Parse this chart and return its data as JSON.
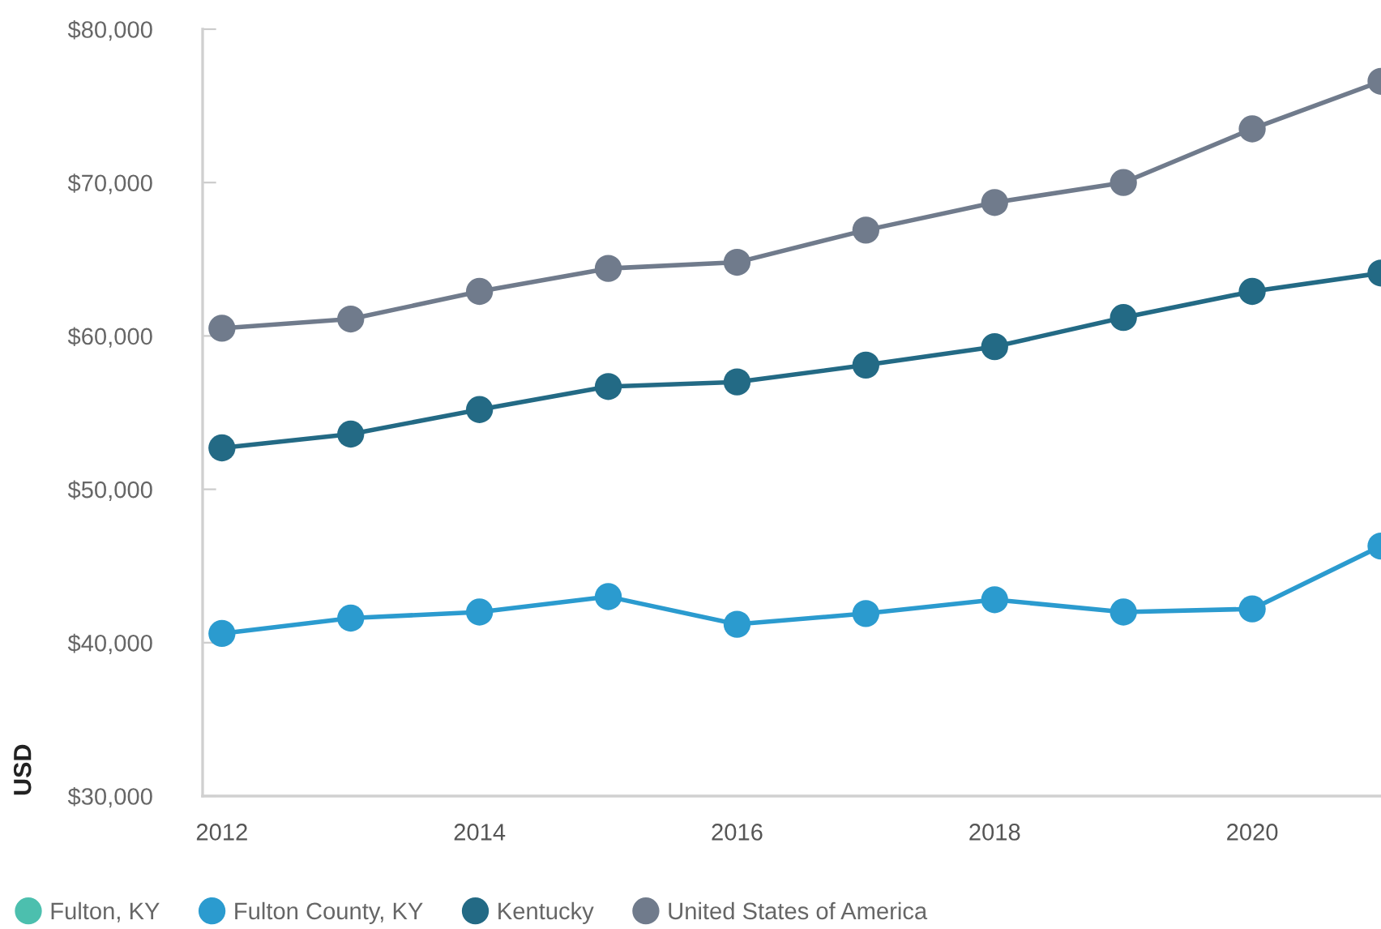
{
  "chart_data": {
    "type": "line",
    "ylabel": "USD",
    "x": [
      2012,
      2013,
      2014,
      2015,
      2016,
      2017,
      2018,
      2019,
      2020,
      2021
    ],
    "series": [
      {
        "name": "Fulton, KY",
        "color": "#4cbfae",
        "values": [
          null,
          null,
          null,
          null,
          null,
          null,
          null,
          null,
          null,
          null
        ]
      },
      {
        "name": "Fulton County, KY",
        "color": "#2b9bcf",
        "values": [
          40600,
          41600,
          42000,
          43000,
          41200,
          41900,
          42800,
          42000,
          42200,
          46300
        ]
      },
      {
        "name": "Kentucky",
        "color": "#236a85",
        "values": [
          52700,
          53600,
          55200,
          56700,
          57000,
          58100,
          59300,
          61200,
          62900,
          64100
        ]
      },
      {
        "name": "United States of America",
        "color": "#707b8c",
        "values": [
          60500,
          61100,
          62900,
          64400,
          64800,
          66900,
          68700,
          70000,
          73500,
          76600
        ]
      }
    ],
    "xlim": [
      2011.85,
      2021
    ],
    "xticks": [
      2012,
      2014,
      2016,
      2018,
      2020
    ],
    "ylim": [
      30000,
      80000
    ],
    "yticks": [
      {
        "value": 30000,
        "label": "$30,000"
      },
      {
        "value": 40000,
        "label": "$40,000"
      },
      {
        "value": 50000,
        "label": "$50,000"
      },
      {
        "value": 60000,
        "label": "$60,000"
      },
      {
        "value": 70000,
        "label": "$70,000"
      },
      {
        "value": 80000,
        "label": "$80,000"
      }
    ],
    "legend": "bottom",
    "marker": "circle",
    "line_style": "solid"
  }
}
